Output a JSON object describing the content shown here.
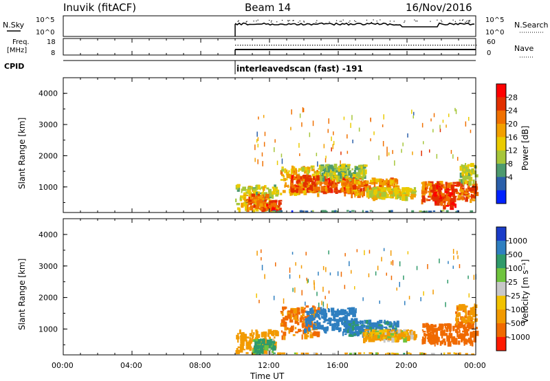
{
  "header": {
    "station": "Inuvik (fitACF)",
    "beam": "Beam 14",
    "date": "16/Nov/2016"
  },
  "top_panels": {
    "nsky_label": "N.Sky",
    "nsearch_label": "N.Search",
    "nsky_ticks_left": [
      "10^5",
      "10^0"
    ],
    "nsky_ticks_right": [
      "10^5",
      "10^0"
    ],
    "freq_label_line1": "Freq.",
    "freq_label_line2": "[MHz]",
    "freq_ticks": [
      "18",
      "8"
    ],
    "nave_label": "Nave",
    "nave_ticks": [
      "60",
      "0"
    ],
    "cpid_label": "CPID",
    "cpid_value": "interleavedscan (fast) -191"
  },
  "x_axis": {
    "label": "Time UT",
    "ticks": [
      "00:00",
      "04:00",
      "08:00",
      "12:00",
      "16:00",
      "20:00",
      "00:00"
    ],
    "tick_hours": [
      0,
      4,
      8,
      12,
      16,
      20,
      24
    ],
    "range_hours": [
      0,
      24
    ],
    "data_start_hour": 10.0
  },
  "power_panel": {
    "ylabel": "Slant Range [km]",
    "yticks": [
      "4000",
      "3000",
      "2000",
      "1000"
    ],
    "ytick_values": [
      4000,
      3000,
      2000,
      1000
    ],
    "yrange": [
      180,
      4500
    ],
    "colorbar_label": "Power [dB]",
    "colorbar_ticks": [
      "28",
      "24",
      "20",
      "16",
      "12",
      "8",
      "4"
    ],
    "colorbar_colors": [
      "#ff0000",
      "#e23000",
      "#f07000",
      "#f2a000",
      "#eacb00",
      "#a6c63a",
      "#4d9a6e",
      "#2a5faa",
      "#0022ff"
    ]
  },
  "velocity_panel": {
    "ylabel": "Slant Range [km]",
    "yticks": [
      "4000",
      "3000",
      "2000",
      "1000"
    ],
    "ytick_values": [
      4000,
      3000,
      2000,
      1000
    ],
    "yrange": [
      180,
      4500
    ],
    "colorbar_label": "Velocity [m s⁻¹]",
    "colorbar_ticks": [
      "1000",
      "500",
      "100",
      "25",
      "-25",
      "-100",
      "-500",
      "-1000"
    ],
    "colorbar_colors": [
      "#1a3cc8",
      "#2f7fc0",
      "#2f9a6a",
      "#6fc43e",
      "#c8c8c8",
      "#f2c200",
      "#f29a00",
      "#f06a00",
      "#ff1a00"
    ]
  },
  "chart_data": {
    "type": "heatmap",
    "x_unit": "hours UT",
    "series": [
      {
        "name": "Power [dB]",
        "blobs": [
          {
            "x0": 10.0,
            "x1": 12.4,
            "r0": 200,
            "r1": 1100,
            "v": 14
          },
          {
            "x0": 10.6,
            "x1": 11.8,
            "r0": 300,
            "r1": 800,
            "v": 24
          },
          {
            "x0": 11.8,
            "x1": 12.6,
            "r0": 250,
            "r1": 600,
            "v": 26
          },
          {
            "x0": 12.6,
            "x1": 14.8,
            "r0": 800,
            "r1": 1700,
            "v": 18
          },
          {
            "x0": 13.2,
            "x1": 17.0,
            "r0": 900,
            "r1": 1400,
            "v": 26
          },
          {
            "x0": 14.8,
            "x1": 17.5,
            "r0": 1300,
            "r1": 1750,
            "v": 12
          },
          {
            "x0": 16.2,
            "x1": 19.4,
            "r0": 800,
            "r1": 1300,
            "v": 22
          },
          {
            "x0": 17.6,
            "x1": 20.4,
            "r0": 700,
            "r1": 1000,
            "v": 16
          },
          {
            "x0": 20.8,
            "x1": 24.0,
            "r0": 600,
            "r1": 1200,
            "v": 24
          },
          {
            "x0": 21.4,
            "x1": 22.8,
            "r0": 400,
            "r1": 1100,
            "v": 29
          },
          {
            "x0": 23.0,
            "x1": 24.0,
            "r0": 1200,
            "r1": 1800,
            "v": 14
          },
          {
            "x0": 12.0,
            "x1": 24.0,
            "r0": 180,
            "r1": 260,
            "v": 6
          }
        ]
      },
      {
        "name": "Velocity [m s-1]",
        "blobs": [
          {
            "x0": 10.0,
            "x1": 12.4,
            "r0": 200,
            "r1": 1000,
            "v": -300
          },
          {
            "x0": 11.0,
            "x1": 12.2,
            "r0": 300,
            "r1": 700,
            "v": 200
          },
          {
            "x0": 12.6,
            "x1": 14.8,
            "r0": 800,
            "r1": 1750,
            "v": -600
          },
          {
            "x0": 14.0,
            "x1": 17.0,
            "r0": 1000,
            "r1": 1700,
            "v": 800
          },
          {
            "x0": 16.2,
            "x1": 19.4,
            "r0": 800,
            "r1": 1300,
            "v": 600
          },
          {
            "x0": 17.4,
            "x1": 20.4,
            "r0": 700,
            "r1": 1000,
            "v": -150
          },
          {
            "x0": 20.8,
            "x1": 24.0,
            "r0": 600,
            "r1": 1200,
            "v": -700
          },
          {
            "x0": 22.8,
            "x1": 24.0,
            "r0": 1200,
            "r1": 1800,
            "v": -400
          },
          {
            "x0": 12.0,
            "x1": 24.0,
            "r0": 180,
            "r1": 260,
            "v": -80
          }
        ]
      }
    ],
    "nsky": {
      "x_range": [
        10.0,
        24.0
      ],
      "level": "10^3"
    },
    "freq_mhz": {
      "x_range": [
        10.0,
        24.0
      ],
      "value": 10.5
    },
    "nave": {
      "x_range": [
        10.0,
        24.0
      ],
      "value": 40
    }
  }
}
